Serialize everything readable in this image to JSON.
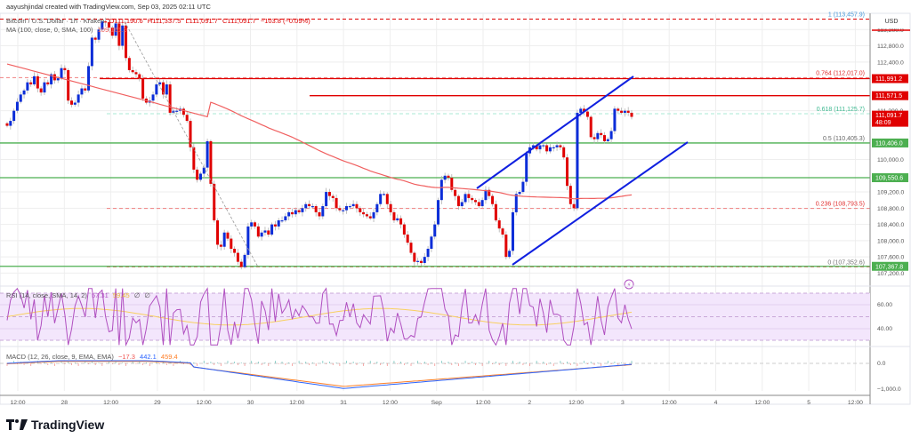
{
  "credit": "aayushjindal created with TradingView.com, Sep 03, 2025 02:11 UTC",
  "header": {
    "symbol": "Bitcoin / U.S. Dollar · 1h · Kraken",
    "open": "O111,190.6",
    "high": "H111,337.5",
    "low": "L111,091.7",
    "close": "C111,091.7",
    "change": "−103.8 (−0.09%)"
  },
  "ma_legend": {
    "label": "MA (100, close, 0, SMA, 100)",
    "value": "109,161.9"
  },
  "rsi_legend": {
    "label": "RSI (14, close, SMA, 14, 2)",
    "value": "57.31",
    "sma": "59.45",
    "extra1": "∅",
    "extra2": "∅"
  },
  "macd_legend": {
    "label": "MACD (12, 26, close, 9, EMA, EMA)",
    "hist": "−17.3",
    "macd": "442.1",
    "signal": "459.4"
  },
  "currency": "USD",
  "colors": {
    "up": "#0b2dd8",
    "down": "#e00000",
    "ma": "#f06060",
    "green_line": "#4caf50",
    "red_line": "#e00000",
    "fib_red": "#e05050",
    "fib_green": "#80d8c0",
    "rsi": "#b04fc0",
    "rsi_sma": "#f8d060",
    "macd": "#2962ff",
    "signal": "#ff7f27",
    "channel": "#1020e0"
  },
  "brand": "TradingView",
  "chart_data": {
    "type": "candlestick",
    "title": "Bitcoin / U.S. Dollar · 1h · Kraken",
    "xlabel": "",
    "ylabel": "USD",
    "ylim": [
      107100,
      113600
    ],
    "price_axis_ticks": [
      "113,200.0",
      "112,800.0",
      "112,400.0",
      "111,200.0",
      "110,000.0",
      "109,200.0",
      "108,800.0",
      "108,400.0",
      "108,000.0",
      "107,600.0",
      "107,200.0"
    ],
    "time_axis_ticks": [
      "12:00",
      "28",
      "12:00",
      "29",
      "12:00",
      "30",
      "12:00",
      "31",
      "12:00",
      "Sep",
      "12:00",
      "2",
      "12:00",
      "3",
      "12:00",
      "4",
      "12:00",
      "5",
      "12:00"
    ],
    "price_tags": [
      {
        "value": "111,991.2",
        "price": 111991.2,
        "color": "#e00000"
      },
      {
        "value": "111,571.5",
        "price": 111571.5,
        "color": "#e00000"
      },
      {
        "value": "111,091.7",
        "sub": "48:09",
        "price": 111091.7,
        "color": "#e00000"
      },
      {
        "value": "110,406.0",
        "price": 110406.0,
        "color": "#4caf50"
      },
      {
        "value": "109,550.6",
        "price": 109550.6,
        "color": "#4caf50"
      },
      {
        "value": "107,367.8",
        "price": 107367.8,
        "color": "#4caf50"
      }
    ],
    "horizontal_lines": [
      {
        "price": 111991.2,
        "color": "#e00000",
        "x0": 112
      },
      {
        "price": 111571.5,
        "color": "#e00000",
        "x0": 348
      },
      {
        "price": 110406.0,
        "color": "#4caf50",
        "x0": 0
      },
      {
        "price": 109550.6,
        "color": "#4caf50",
        "x0": 0
      },
      {
        "price": 107367.8,
        "color": "#4caf50",
        "x0": 0
      }
    ],
    "fibonacci": [
      {
        "level": "1",
        "price": 113457.9,
        "label": "1 (113,457.9)",
        "color": "#4a9ad8"
      },
      {
        "level": "0.764",
        "price": 112017.0,
        "label": "0.764 (112,017.0)",
        "color": "#e03030"
      },
      {
        "level": "0.618",
        "price": 111125.7,
        "label": "0.618 (111,125.7)",
        "color": "#3cb890"
      },
      {
        "level": "0.5",
        "price": 110405.3,
        "label": "0.5 (110,405.3)",
        "color": "#666666"
      },
      {
        "level": "0.236",
        "price": 108793.5,
        "label": "0.236 (108,793.5)",
        "color": "#e03030"
      },
      {
        "level": "0",
        "price": 107352.6,
        "label": "0 (107,352.6)",
        "color": "#777777"
      }
    ],
    "channel": {
      "upper": [
        [
          536,
          212
        ],
        [
          712,
          86
        ]
      ],
      "lower": [
        [
          576,
          298
        ],
        [
          773,
          160
        ]
      ]
    },
    "candles_close": [
      110830,
      110950,
      111200,
      111420,
      111600,
      111700,
      111900,
      111850,
      112050,
      111750,
      111650,
      111900,
      111850,
      112100,
      111950,
      112000,
      112250,
      112200,
      111450,
      111350,
      111400,
      111600,
      111750,
      111700,
      112300,
      113000,
      112950,
      113200,
      113400,
      113380,
      113250,
      113050,
      113350,
      112800,
      113300,
      112500,
      112200,
      112150,
      112100,
      112000,
      111500,
      111400,
      111450,
      111600,
      111850,
      111900,
      111600,
      111850,
      111150,
      111200,
      111200,
      111250,
      111100,
      110950,
      110300,
      109750,
      109500,
      109650,
      109800,
      110450,
      109400,
      108500,
      107900,
      107850,
      108200,
      108050,
      107800,
      107700,
      107480,
      107350,
      107650,
      108350,
      108450,
      108350,
      108100,
      108200,
      108250,
      108150,
      108400,
      108350,
      108500,
      108500,
      108600,
      108700,
      108650,
      108750,
      108700,
      108800,
      108900,
      108850,
      108850,
      108700,
      108600,
      108850,
      109200,
      109100,
      109050,
      108800,
      108750,
      108750,
      108850,
      108850,
      108900,
      108800,
      108700,
      108650,
      108600,
      108550,
      108700,
      108900,
      109150,
      109150,
      108900,
      108700,
      108500,
      108550,
      108400,
      108150,
      107950,
      107700,
      107480,
      107500,
      107450,
      107600,
      107800,
      108100,
      108400,
      109000,
      109500,
      109600,
      109550,
      109250,
      109100,
      108850,
      108950,
      109150,
      109050,
      109000,
      108950,
      108850,
      109000,
      109250,
      109100,
      108900,
      108500,
      108300,
      108150,
      107600,
      107750,
      108700,
      109150,
      109200,
      109450,
      110150,
      110300,
      110350,
      110250,
      110350,
      110350,
      110200,
      110300,
      110300,
      110350,
      110300,
      110050,
      109350,
      108900,
      108800,
      111150,
      111250,
      111180,
      111050,
      110550,
      110500,
      110650,
      110600,
      110450,
      110500,
      110700,
      111250,
      111200,
      111150,
      111200,
      111150,
      111050
    ]
  },
  "rsi_axis": [
    "60.00",
    "40.00"
  ],
  "macd_axis": [
    "0.0",
    "−1,000.0"
  ]
}
